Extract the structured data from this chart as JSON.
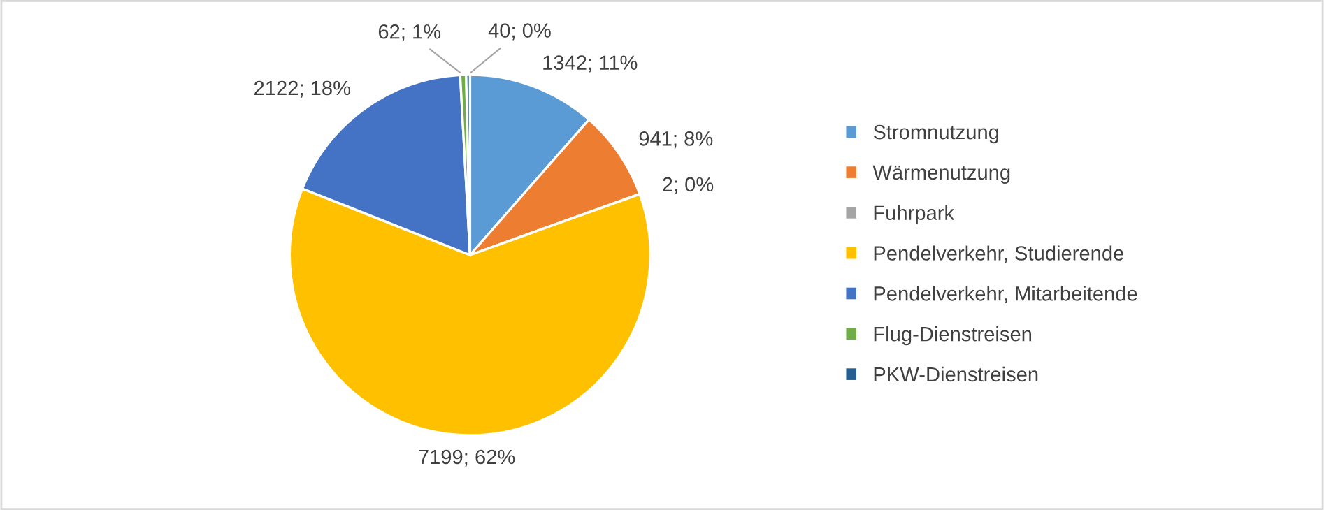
{
  "chart_data": {
    "type": "pie",
    "categories": [
      "Stromnutzung",
      "Wärmenutzung",
      "Fuhrpark",
      "Pendelverkehr, Studierende",
      "Pendelverkehr, Mitarbeitende",
      "Flug-Dienstreisen",
      "PKW-Dienstreisen"
    ],
    "values": [
      1342,
      941,
      2,
      7199,
      2122,
      62,
      40
    ],
    "value_labels": [
      "1342; 11%",
      "941; 8%",
      "2; 0%",
      "7199; 62%",
      "2122; 18%",
      "62; 1%",
      "40; 0%"
    ],
    "colors": [
      "#5b9bd5",
      "#ed7d31",
      "#a5a5a5",
      "#ffc000",
      "#4472c4",
      "#70ad47",
      "#255e91"
    ],
    "legend": "right"
  }
}
